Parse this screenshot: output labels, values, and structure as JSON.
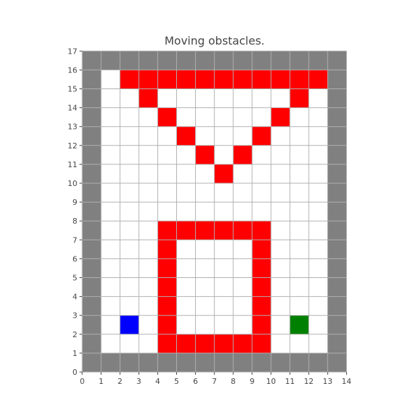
{
  "title": "Moving obstacles.",
  "grid": {
    "cols": 14,
    "rows": 17,
    "x_ticks": [
      "0",
      "1",
      "2",
      "3",
      "4",
      "5",
      "6",
      "7",
      "8",
      "9",
      "10",
      "11",
      "12",
      "13",
      "14"
    ],
    "y_ticks": [
      "0",
      "1",
      "2",
      "3",
      "4",
      "5",
      "6",
      "7",
      "8",
      "9",
      "10",
      "11",
      "12",
      "13",
      "14",
      "15",
      "16",
      "17"
    ]
  },
  "colors": {
    "wall": "#808080",
    "free": "#ffffff",
    "obstacle": "#ff0000",
    "agent": "#0000ff",
    "goal": "#008000",
    "gridline": "#b0b0b0",
    "axis": "#444444"
  },
  "cells": {
    "obstacles": [
      [
        2,
        15
      ],
      [
        3,
        15
      ],
      [
        4,
        15
      ],
      [
        5,
        15
      ],
      [
        6,
        15
      ],
      [
        7,
        15
      ],
      [
        8,
        15
      ],
      [
        9,
        15
      ],
      [
        10,
        15
      ],
      [
        11,
        15
      ],
      [
        12,
        15
      ],
      [
        3,
        14
      ],
      [
        11,
        14
      ],
      [
        4,
        13
      ],
      [
        10,
        13
      ],
      [
        5,
        12
      ],
      [
        9,
        12
      ],
      [
        6,
        11
      ],
      [
        8,
        11
      ],
      [
        7,
        10
      ],
      [
        4,
        7
      ],
      [
        5,
        7
      ],
      [
        6,
        7
      ],
      [
        7,
        7
      ],
      [
        8,
        7
      ],
      [
        9,
        7
      ],
      [
        4,
        6
      ],
      [
        9,
        6
      ],
      [
        4,
        5
      ],
      [
        9,
        5
      ],
      [
        4,
        4
      ],
      [
        9,
        4
      ],
      [
        4,
        3
      ],
      [
        9,
        3
      ],
      [
        4,
        2
      ],
      [
        9,
        2
      ],
      [
        4,
        1
      ],
      [
        5,
        1
      ],
      [
        6,
        1
      ],
      [
        7,
        1
      ],
      [
        8,
        1
      ],
      [
        9,
        1
      ]
    ],
    "agent": [
      2,
      2
    ],
    "goal": [
      11,
      2
    ]
  }
}
